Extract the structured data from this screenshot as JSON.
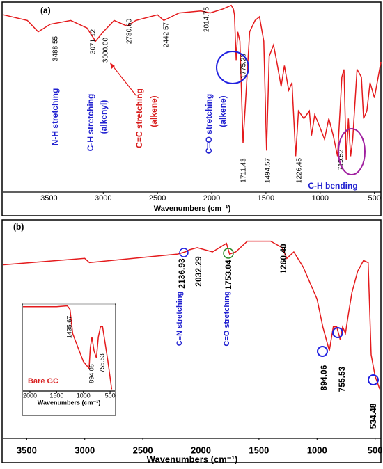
{
  "chart_data": [
    {
      "type": "line",
      "title": "(a)",
      "x_label": "Wavenumbers (cm⁻¹)",
      "xlim": [
        3920,
        440
      ],
      "xticks": [
        3500,
        3000,
        2500,
        2000,
        1500,
        1000,
        500
      ],
      "ylim": [
        0,
        100
      ],
      "yticks": [],
      "color": "#e41a1c",
      "x": [
        3920,
        3700,
        3600,
        3488,
        3300,
        3150,
        3071,
        3000,
        2900,
        2780,
        2700,
        2500,
        2442,
        2300,
        2100,
        2014,
        1900,
        1820,
        1800,
        1790,
        1775,
        1760,
        1740,
        1711,
        1690,
        1650,
        1600,
        1560,
        1520,
        1494,
        1470,
        1430,
        1400,
        1360,
        1330,
        1290,
        1260,
        1226,
        1200,
        1150,
        1100,
        1080,
        1050,
        1000,
        960,
        920,
        880,
        840,
        800,
        780,
        760,
        740,
        719,
        700,
        660,
        620,
        600,
        570,
        540,
        500,
        440
      ],
      "values": [
        94,
        91,
        85,
        89,
        91,
        87,
        80,
        85,
        91,
        88,
        91,
        94,
        91,
        95,
        96,
        95,
        97,
        99,
        97,
        94,
        70,
        85,
        80,
        26,
        46,
        85,
        91,
        93,
        80,
        22,
        72,
        78,
        69,
        56,
        67,
        54,
        58,
        19,
        43,
        39,
        43,
        30,
        41,
        34,
        28,
        39,
        30,
        19,
        61,
        65,
        17,
        39,
        19,
        28,
        65,
        61,
        39,
        43,
        58,
        50,
        69
      ],
      "peaks": [
        3488.55,
        3071.12,
        {
          "value": 3000,
          "label": "3000.00"
        },
        {
          "value": 2780.6,
          "label": "2780.60"
        },
        2442.57,
        2014.75,
        1775.28,
        1711.43,
        1494.57,
        1226.45,
        719.52
      ],
      "annotations": [
        {
          "text": "N-H stretching",
          "color": "#2020d0"
        },
        {
          "text": "C-H stretching",
          "color": "#2020d0"
        },
        {
          "text": "(alkenyl)",
          "color": "#2020d0"
        },
        {
          "text": "C=C stretching",
          "color": "#d81e1e"
        },
        {
          "text": "(alkene)",
          "color": "#d81e1e"
        },
        {
          "text": "C=O stretching",
          "color": "#2020d0"
        },
        {
          "text": "(alkene)",
          "color": "#2020d0"
        },
        {
          "text": "C-H bending",
          "color": "#2020d0"
        }
      ]
    },
    {
      "type": "line",
      "title": "(b)",
      "x_label": "Wavenumbers (cm⁻¹)",
      "xlim": [
        3700,
        450
      ],
      "xticks": [
        3500,
        3000,
        2500,
        2000,
        1500,
        1000,
        500
      ],
      "ylim": [
        0,
        100
      ],
      "yticks": [],
      "color": "#e41a1c",
      "x": [
        3700,
        3000,
        2960,
        2200,
        2136,
        2100,
        2032,
        1900,
        1780,
        1753,
        1700,
        1600,
        1500,
        1400,
        1300,
        1260,
        1200,
        1120,
        1000,
        950,
        900,
        894,
        860,
        830,
        800,
        780,
        755,
        730,
        700,
        650,
        600,
        560,
        534,
        500,
        460
      ],
      "values": [
        81,
        84,
        82,
        86,
        87,
        88,
        89,
        87,
        91,
        86,
        87,
        92,
        92,
        92,
        89,
        84,
        87,
        80,
        65,
        52,
        42,
        41,
        52,
        52,
        46,
        52,
        49,
        58,
        68,
        78,
        83,
        82,
        39,
        29,
        23
      ],
      "peaks": [
        2136.93,
        2032.29,
        1753.04,
        {
          "value": 1260.4,
          "label": "1260.40"
        },
        894.06,
        755.53,
        534.48
      ],
      "annotations": [
        {
          "text": "C≡N stretching",
          "color": "#2020d0"
        },
        {
          "text": "C=O stretching",
          "color": "#2020d0"
        }
      ]
    },
    {
      "type": "line",
      "x_label": "Wavenumbers (cm⁻¹)",
      "xlim": [
        2130,
        410
      ],
      "xticks": [
        2000,
        1500,
        1000,
        500
      ],
      "ylim": [
        0,
        100
      ],
      "yticks": [],
      "color": "#e41a1c",
      "x": [
        2130,
        1500,
        1300,
        1250,
        1200,
        1100,
        1000,
        894,
        870,
        840,
        800,
        755,
        720,
        680,
        640,
        600,
        540,
        470
      ],
      "values": [
        97,
        97,
        98,
        94,
        66,
        50,
        34,
        26,
        50,
        62,
        46,
        38,
        62,
        74,
        74,
        58,
        34,
        2
      ],
      "peaks": [
        1435.67,
        894.06,
        755.53
      ],
      "annotations": [
        {
          "text": "Bare GC",
          "color": "#d81e1e"
        }
      ]
    }
  ]
}
